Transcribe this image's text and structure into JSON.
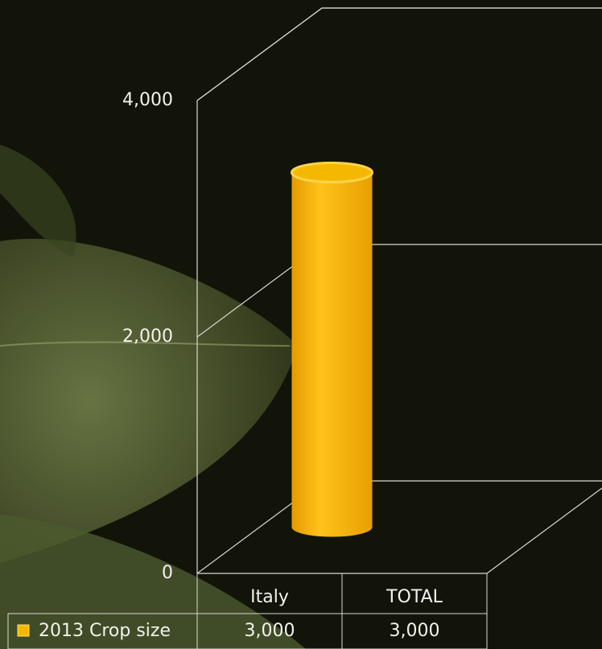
{
  "chart_data": {
    "type": "bar3d",
    "categories": [
      "Italy",
      "TOTAL"
    ],
    "series": [
      {
        "name": "2013 Crop size",
        "color": "#f5b800",
        "values": [
          3000,
          3000
        ],
        "value_labels": [
          "3,000",
          "3,000"
        ]
      }
    ],
    "ylim": [
      0,
      4000
    ],
    "yticks": [
      0,
      {
        "value": 2000,
        "label": "2,000"
      },
      {
        "value": 4000,
        "label": "4,000"
      }
    ],
    "grid": true
  }
}
